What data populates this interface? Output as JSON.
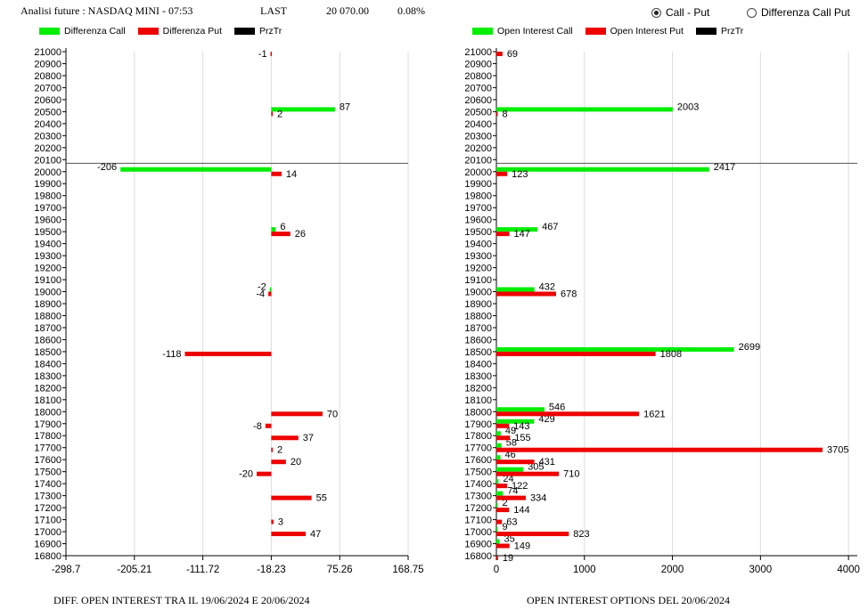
{
  "header": {
    "title": "Analisi future : NASDAQ MINI - 07:53",
    "last_label": "LAST",
    "last_value": "20 070.00",
    "change": "0.08%"
  },
  "radios": [
    {
      "label": "Call - Put",
      "selected": true
    },
    {
      "label": "Differenza Call Put",
      "selected": false
    }
  ],
  "colors": {
    "call": "#00ee00",
    "put": "#ee0000",
    "prztr": "#000000"
  },
  "chart_data": [
    {
      "type": "bar",
      "title": "DIFF. OPEN INTEREST TRA IL 19/06/2024 E 20/06/2024",
      "legend": [
        "Differenza Call",
        "Differenza Put",
        "PrzTr"
      ],
      "legend_position": "top-left",
      "orientation": "horizontal",
      "x_ticks": [
        "-298.7",
        "-205.21",
        "-111.72",
        "-18.23",
        "75.26",
        "168.75"
      ],
      "xlim": [
        -298.7,
        168.75
      ],
      "grid": true,
      "price_level": 20070,
      "categories": [
        "21000",
        "20900",
        "20800",
        "20700",
        "20600",
        "20500",
        "20400",
        "20300",
        "20200",
        "20100",
        "20000",
        "19900",
        "19800",
        "19700",
        "19600",
        "19500",
        "19400",
        "19300",
        "19200",
        "19100",
        "19000",
        "18900",
        "18800",
        "18700",
        "18600",
        "18500",
        "18400",
        "18300",
        "18200",
        "18100",
        "18000",
        "17900",
        "17800",
        "17700",
        "17600",
        "17500",
        "17400",
        "17300",
        "17200",
        "17100",
        "17000",
        "16900",
        "16800"
      ],
      "series": [
        {
          "name": "Differenza Call",
          "points": [
            {
              "strike": 20500,
              "value": 87
            },
            {
              "strike": 20000,
              "value": -206
            },
            {
              "strike": 19500,
              "value": 6
            },
            {
              "strike": 19000,
              "value": -2
            }
          ]
        },
        {
          "name": "Differenza Put",
          "points": [
            {
              "strike": 21000,
              "value": -1
            },
            {
              "strike": 20500,
              "value": 2
            },
            {
              "strike": 20000,
              "value": 14
            },
            {
              "strike": 19500,
              "value": 26
            },
            {
              "strike": 19000,
              "value": -4
            },
            {
              "strike": 18500,
              "value": -118
            },
            {
              "strike": 18000,
              "value": 70
            },
            {
              "strike": 17900,
              "value": -8
            },
            {
              "strike": 17800,
              "value": 37
            },
            {
              "strike": 17700,
              "value": 2
            },
            {
              "strike": 17600,
              "value": 20
            },
            {
              "strike": 17500,
              "value": -20
            },
            {
              "strike": 17300,
              "value": 55
            },
            {
              "strike": 17100,
              "value": 3
            },
            {
              "strike": 17000,
              "value": 47
            }
          ]
        }
      ]
    },
    {
      "type": "bar",
      "title": "OPEN INTEREST OPTIONS DEL 20/06/2024",
      "legend": [
        "Open Interest Call",
        "Open Interest Put",
        "PrzTr"
      ],
      "legend_position": "top-left",
      "orientation": "horizontal",
      "x_ticks": [
        "0",
        "1000",
        "2000",
        "3000",
        "4000"
      ],
      "xlim": [
        0,
        4100
      ],
      "grid": true,
      "price_level": 20070,
      "categories": [
        "21000",
        "20900",
        "20800",
        "20700",
        "20600",
        "20500",
        "20400",
        "20300",
        "20200",
        "20100",
        "20000",
        "19900",
        "19800",
        "19700",
        "19600",
        "19500",
        "19400",
        "19300",
        "19200",
        "19100",
        "19000",
        "18900",
        "18800",
        "18700",
        "18600",
        "18500",
        "18400",
        "18300",
        "18200",
        "18100",
        "18000",
        "17900",
        "17800",
        "17700",
        "17600",
        "17500",
        "17400",
        "17300",
        "17200",
        "17100",
        "17000",
        "16900",
        "16800"
      ],
      "series": [
        {
          "name": "Open Interest Call",
          "points": [
            {
              "strike": 20500,
              "value": 2003
            },
            {
              "strike": 20000,
              "value": 2417
            },
            {
              "strike": 19500,
              "value": 467
            },
            {
              "strike": 19000,
              "value": 432
            },
            {
              "strike": 18500,
              "value": 2699
            },
            {
              "strike": 18000,
              "value": 546
            },
            {
              "strike": 17900,
              "value": 429
            },
            {
              "strike": 17800,
              "value": 49
            },
            {
              "strike": 17700,
              "value": 58
            },
            {
              "strike": 17600,
              "value": 46
            },
            {
              "strike": 17500,
              "value": 305
            },
            {
              "strike": 17400,
              "value": 24
            },
            {
              "strike": 17300,
              "value": 74
            },
            {
              "strike": 17200,
              "value": 2
            },
            {
              "strike": 17000,
              "value": 9
            },
            {
              "strike": 16900,
              "value": 35
            }
          ]
        },
        {
          "name": "Open Interest Put",
          "points": [
            {
              "strike": 21000,
              "value": 69
            },
            {
              "strike": 20500,
              "value": 8
            },
            {
              "strike": 20000,
              "value": 123
            },
            {
              "strike": 19500,
              "value": 147
            },
            {
              "strike": 19000,
              "value": 678
            },
            {
              "strike": 18500,
              "value": 1808
            },
            {
              "strike": 18000,
              "value": 1621
            },
            {
              "strike": 17900,
              "value": 143
            },
            {
              "strike": 17800,
              "value": 155
            },
            {
              "strike": 17700,
              "value": 3705
            },
            {
              "strike": 17600,
              "value": 431
            },
            {
              "strike": 17500,
              "value": 710
            },
            {
              "strike": 17400,
              "value": 122
            },
            {
              "strike": 17300,
              "value": 334
            },
            {
              "strike": 17200,
              "value": 144
            },
            {
              "strike": 17100,
              "value": 63
            },
            {
              "strike": 17000,
              "value": 823
            },
            {
              "strike": 16900,
              "value": 149
            },
            {
              "strike": 16800,
              "value": 19
            }
          ]
        }
      ]
    }
  ]
}
